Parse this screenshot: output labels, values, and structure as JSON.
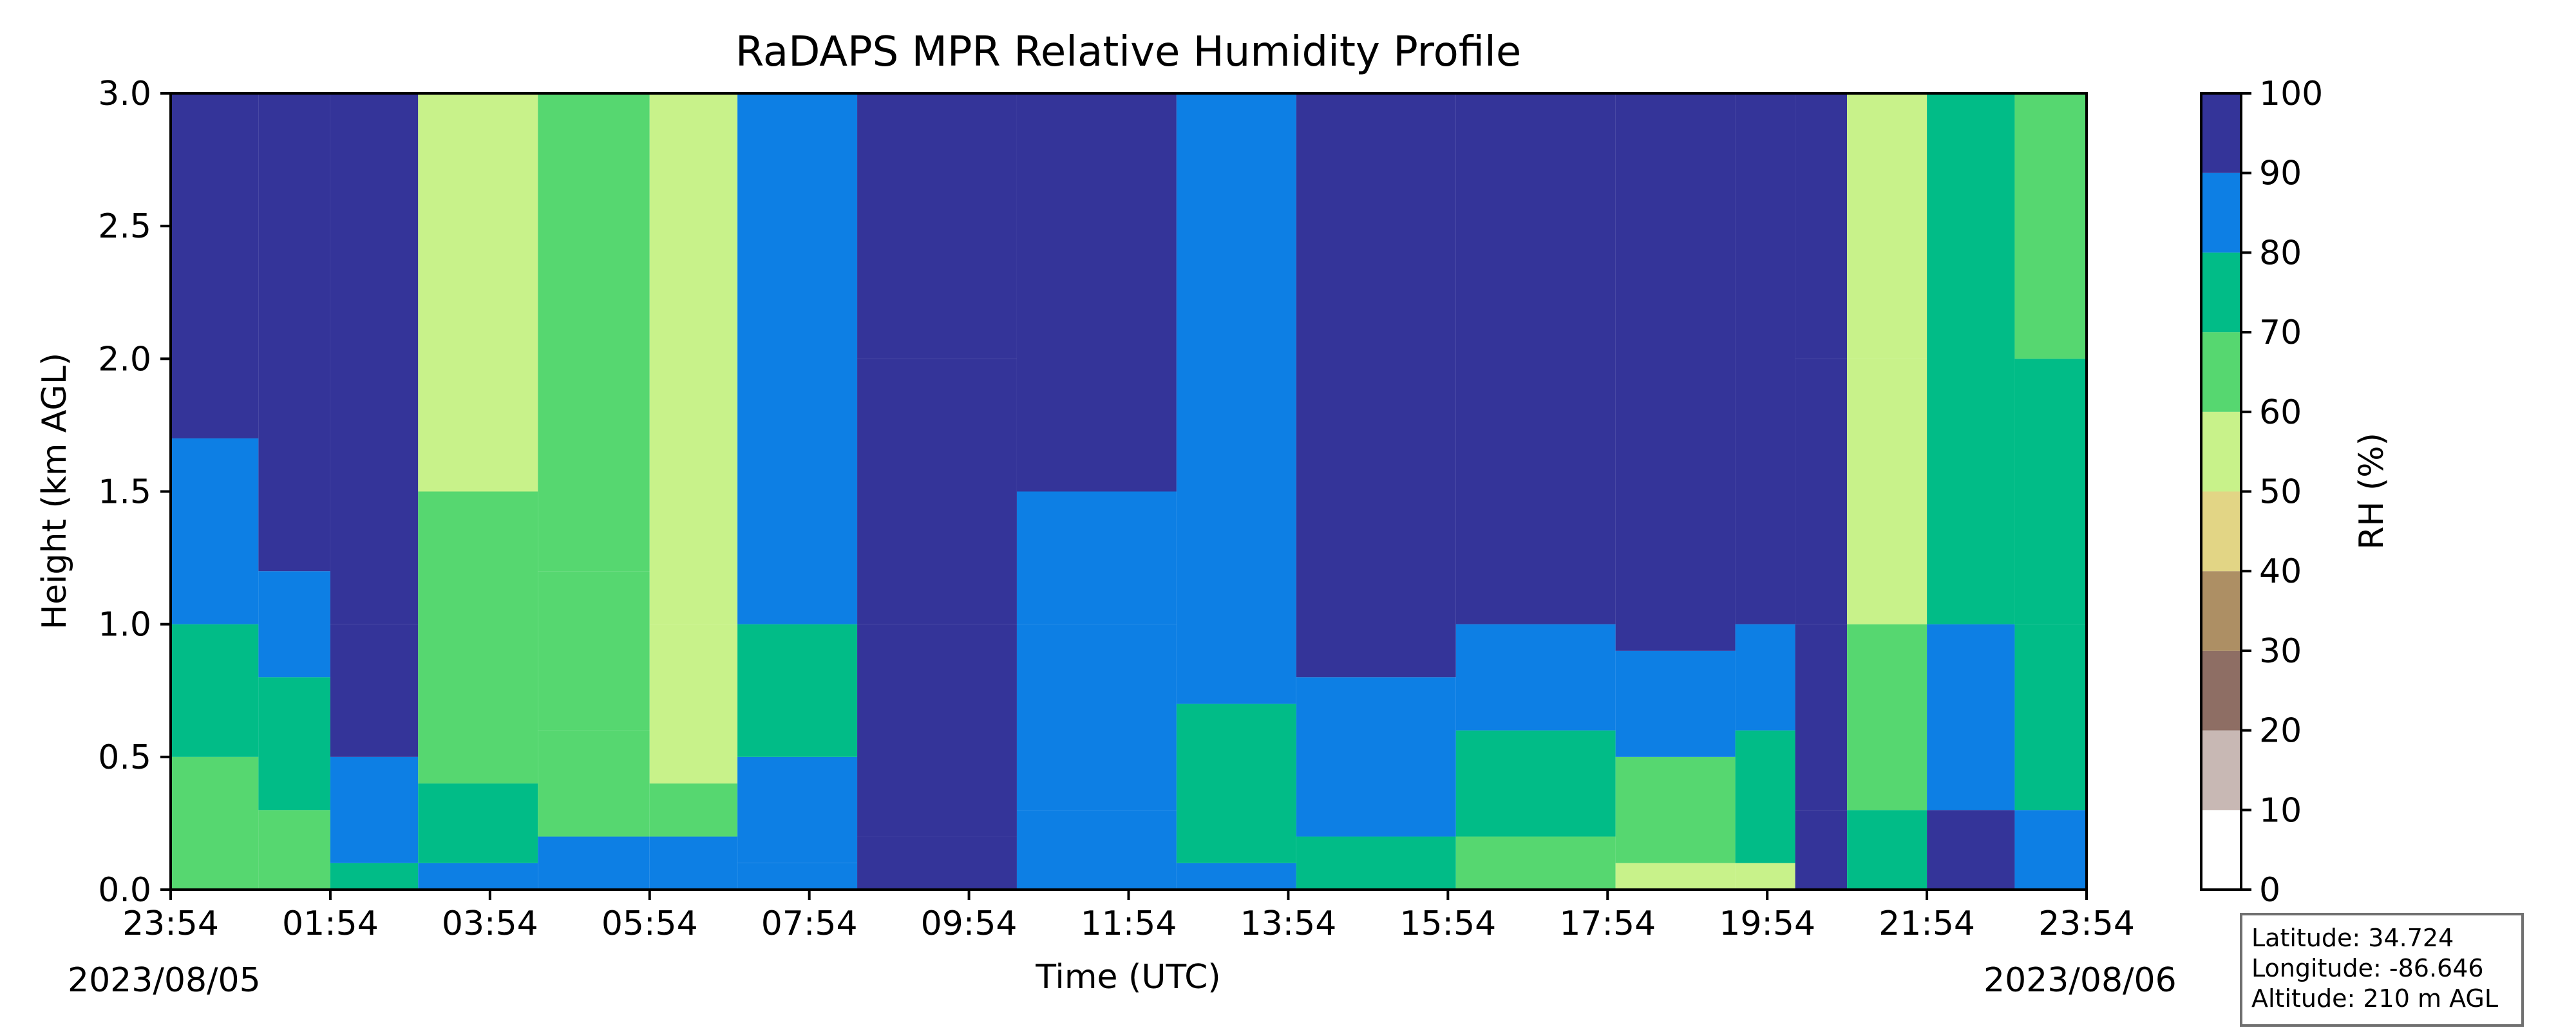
{
  "chart_data": {
    "type": "heatmap",
    "title": "RaDAPS MPR Relative Humidity Profile",
    "xlabel": "Time (UTC)",
    "ylabel": "Height (km AGL)",
    "ylim": [
      0,
      3.0
    ],
    "x_ticks": [
      "23:54",
      "01:54",
      "03:54",
      "05:54",
      "07:54",
      "09:54",
      "11:54",
      "13:54",
      "15:54",
      "17:54",
      "19:54",
      "21:54",
      "23:54"
    ],
    "y_ticks": [
      "0.0",
      "0.5",
      "1.0",
      "1.5",
      "2.0",
      "2.5",
      "3.0"
    ],
    "start_date": "2023/08/05",
    "end_date": "2023/08/06",
    "colorbar": {
      "label": "RH (%)",
      "ticks": [
        "0",
        "10",
        "20",
        "30",
        "40",
        "50",
        "60",
        "70",
        "80",
        "90",
        "100"
      ],
      "colors": [
        "#ffffff",
        "#c8b8b4",
        "#8e6e64",
        "#ad8f64",
        "#e2d585",
        "#c8f28a",
        "#56d770",
        "#01bc87",
        "#0d7fe4",
        "#343499"
      ]
    },
    "profiles": [
      {
        "time": "23:54",
        "h_km": [
          0.5,
          1.0,
          1.7,
          3.0
        ],
        "rh": [
          65,
          75,
          85,
          95
        ]
      },
      {
        "time": "01:00",
        "h_km": [
          0.3,
          0.8,
          1.2,
          3.0
        ],
        "rh": [
          65,
          75,
          85,
          95
        ]
      },
      {
        "time": "01:54",
        "h_km": [
          0.1,
          0.5,
          1.0,
          3.0
        ],
        "rh": [
          75,
          85,
          95,
          95
        ]
      },
      {
        "time": "03:00",
        "h_km": [
          0.1,
          0.4,
          1.5,
          3.0
        ],
        "rh": [
          85,
          75,
          65,
          55
        ]
      },
      {
        "time": "04:30",
        "h_km": [
          0.2,
          0.6,
          1.2,
          3.0
        ],
        "rh": [
          85,
          65,
          65,
          65
        ]
      },
      {
        "time": "05:54",
        "h_km": [
          0.2,
          0.4,
          1.0,
          3.0
        ],
        "rh": [
          85,
          65,
          55,
          55
        ]
      },
      {
        "time": "07:00",
        "h_km": [
          0.1,
          0.5,
          1.0,
          3.0
        ],
        "rh": [
          85,
          85,
          75,
          85
        ]
      },
      {
        "time": "08:30",
        "h_km": [
          0.2,
          1.0,
          2.0,
          3.0
        ],
        "rh": [
          95,
          95,
          95,
          95
        ]
      },
      {
        "time": "10:30",
        "h_km": [
          0.3,
          1.0,
          1.5,
          3.0
        ],
        "rh": [
          85,
          85,
          85,
          95
        ]
      },
      {
        "time": "12:30",
        "h_km": [
          0.1,
          0.7,
          1.5,
          3.0
        ],
        "rh": [
          85,
          75,
          85,
          85
        ]
      },
      {
        "time": "14:00",
        "h_km": [
          0.2,
          0.8,
          1.5,
          3.0
        ],
        "rh": [
          75,
          85,
          95,
          95
        ]
      },
      {
        "time": "16:00",
        "h_km": [
          0.2,
          0.6,
          1.0,
          3.0
        ],
        "rh": [
          65,
          75,
          85,
          95
        ]
      },
      {
        "time": "18:00",
        "h_km": [
          0.1,
          0.5,
          0.9,
          3.0
        ],
        "rh": [
          55,
          65,
          85,
          95
        ]
      },
      {
        "time": "19:30",
        "h_km": [
          0.1,
          0.6,
          1.0,
          3.0
        ],
        "rh": [
          55,
          75,
          85,
          95
        ]
      },
      {
        "time": "20:15",
        "h_km": [
          0.3,
          1.0,
          2.0,
          3.0
        ],
        "rh": [
          95,
          95,
          95,
          95
        ]
      },
      {
        "time": "20:54",
        "h_km": [
          0.3,
          1.0,
          2.0,
          3.0
        ],
        "rh": [
          75,
          65,
          55,
          55
        ]
      },
      {
        "time": "21:54",
        "h_km": [
          0.3,
          1.0,
          1.5,
          3.0
        ],
        "rh": [
          95,
          85,
          75,
          75
        ]
      },
      {
        "time": "23:00",
        "h_km": [
          0.3,
          1.0,
          2.0,
          3.0
        ],
        "rh": [
          85,
          75,
          75,
          65
        ]
      },
      {
        "time": "23:54",
        "h_km": [
          0.3,
          1.0,
          2.0,
          3.0
        ],
        "rh": [
          85,
          75,
          75,
          65
        ]
      }
    ]
  },
  "info": {
    "latitude": "Latitude: 34.724",
    "longitude": "Longitude: -86.646",
    "altitude": "Altitude: 210 m AGL"
  }
}
